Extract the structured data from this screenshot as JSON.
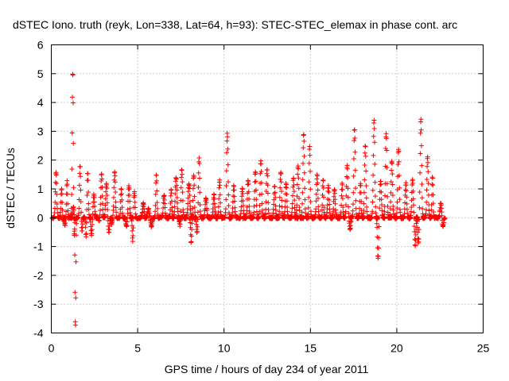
{
  "chart_data": {
    "type": "scatter",
    "title": "dSTEC Iono. truth (reyk, Lon=338, Lat=64, h=93): STEC-STEC_elemax in phase cont. arc",
    "xlabel": "GPS time / hours of day 234 of year 2011",
    "ylabel": "dSTEC  / TECUs",
    "xlim": [
      0,
      25
    ],
    "ylim": [
      -4,
      6
    ],
    "xticks": [
      0,
      5,
      10,
      15,
      20,
      25
    ],
    "yticks": [
      -4,
      -3,
      -2,
      -1,
      0,
      1,
      2,
      3,
      4,
      5,
      6
    ],
    "grid": true,
    "marker": "+",
    "color": "#ff0000",
    "series": [
      {
        "name": "dSTEC",
        "arcs": [
          {
            "start": 0.05,
            "end": 0.5,
            "peak": 1.6,
            "trough": 0.0
          },
          {
            "start": 0.4,
            "end": 0.8,
            "peak": 1.0,
            "trough": -0.1
          },
          {
            "start": 0.7,
            "end": 1.05,
            "peak": 1.3,
            "trough": -0.3
          },
          {
            "start": 1.05,
            "end": 1.45,
            "peak": 5.1,
            "trough": -0.9
          },
          {
            "start": 1.15,
            "end": 1.5,
            "peak": 0.4,
            "trough": -3.85
          },
          {
            "start": 1.5,
            "end": 1.9,
            "peak": 1.8,
            "trough": -0.5
          },
          {
            "start": 1.9,
            "end": 2.3,
            "peak": 1.6,
            "trough": -0.7
          },
          {
            "start": 2.2,
            "end": 2.7,
            "peak": 0.8,
            "trough": -0.6
          },
          {
            "start": 2.6,
            "end": 3.1,
            "peak": 1.5,
            "trough": -0.1
          },
          {
            "start": 3.0,
            "end": 3.5,
            "peak": 1.2,
            "trough": -0.5
          },
          {
            "start": 3.4,
            "end": 3.9,
            "peak": 1.6,
            "trough": -0.2
          },
          {
            "start": 3.9,
            "end": 4.3,
            "peak": 1.0,
            "trough": 0.0
          },
          {
            "start": 4.2,
            "end": 4.7,
            "peak": 1.1,
            "trough": -0.3
          },
          {
            "start": 4.6,
            "end": 5.0,
            "peak": 0.9,
            "trough": -0.8
          },
          {
            "start": 5.0,
            "end": 5.5,
            "peak": 0.5,
            "trough": 0.0
          },
          {
            "start": 5.4,
            "end": 5.9,
            "peak": 0.3,
            "trough": -0.3
          },
          {
            "start": 5.9,
            "end": 6.3,
            "peak": 1.5,
            "trough": 0.0
          },
          {
            "start": 6.3,
            "end": 6.8,
            "peak": 0.8,
            "trough": 0.0
          },
          {
            "start": 6.7,
            "end": 7.1,
            "peak": 1.0,
            "trough": 0.0
          },
          {
            "start": 7.0,
            "end": 7.6,
            "peak": 1.4,
            "trough": 0.0
          },
          {
            "start": 7.3,
            "end": 7.8,
            "peak": 1.7,
            "trough": -0.4
          },
          {
            "start": 7.7,
            "end": 8.3,
            "peak": 1.2,
            "trough": 0.0
          },
          {
            "start": 8.0,
            "end": 8.4,
            "peak": 1.5,
            "trough": -0.85
          },
          {
            "start": 8.3,
            "end": 8.7,
            "peak": 2.1,
            "trough": -0.5
          },
          {
            "start": 8.7,
            "end": 9.2,
            "peak": 0.7,
            "trough": 0.0
          },
          {
            "start": 9.1,
            "end": 9.6,
            "peak": 0.8,
            "trough": 0.0
          },
          {
            "start": 9.5,
            "end": 9.9,
            "peak": 1.3,
            "trough": 0.0
          },
          {
            "start": 9.9,
            "end": 10.4,
            "peak": 2.9,
            "trough": 0.0
          },
          {
            "start": 10.3,
            "end": 10.8,
            "peak": 1.1,
            "trough": 0.0
          },
          {
            "start": 10.8,
            "end": 11.3,
            "peak": 1.0,
            "trough": 0.0
          },
          {
            "start": 11.1,
            "end": 11.6,
            "peak": 1.3,
            "trough": 0.0
          },
          {
            "start": 11.5,
            "end": 12.0,
            "peak": 1.6,
            "trough": 0.0
          },
          {
            "start": 11.9,
            "end": 12.4,
            "peak": 2.0,
            "trough": 0.0
          },
          {
            "start": 12.3,
            "end": 12.8,
            "peak": 1.7,
            "trough": 0.0
          },
          {
            "start": 12.7,
            "end": 13.2,
            "peak": 1.1,
            "trough": 0.0
          },
          {
            "start": 13.0,
            "end": 13.5,
            "peak": 1.6,
            "trough": 0.0
          },
          {
            "start": 13.4,
            "end": 13.9,
            "peak": 1.2,
            "trough": 0.0
          },
          {
            "start": 13.8,
            "end": 14.3,
            "peak": 1.4,
            "trough": 0.0
          },
          {
            "start": 14.1,
            "end": 14.6,
            "peak": 1.8,
            "trough": 0.0
          },
          {
            "start": 14.4,
            "end": 14.9,
            "peak": 2.9,
            "trough": 0.0
          },
          {
            "start": 14.8,
            "end": 15.2,
            "peak": 2.5,
            "trough": 0.0
          },
          {
            "start": 15.1,
            "end": 15.6,
            "peak": 1.5,
            "trough": 0.0
          },
          {
            "start": 15.5,
            "end": 15.9,
            "peak": 1.3,
            "trough": 0.0
          },
          {
            "start": 15.8,
            "end": 16.3,
            "peak": 1.1,
            "trough": 0.0
          },
          {
            "start": 16.2,
            "end": 16.7,
            "peak": 1.0,
            "trough": 0.0
          },
          {
            "start": 16.6,
            "end": 17.0,
            "peak": 1.2,
            "trough": 0.0
          },
          {
            "start": 16.9,
            "end": 17.4,
            "peak": 1.8,
            "trough": -0.4
          },
          {
            "start": 17.3,
            "end": 17.8,
            "peak": 3.1,
            "trough": 0.0
          },
          {
            "start": 17.7,
            "end": 18.1,
            "peak": 1.2,
            "trough": 0.0
          },
          {
            "start": 18.0,
            "end": 18.5,
            "peak": 2.5,
            "trough": 0.0
          },
          {
            "start": 18.4,
            "end": 18.9,
            "peak": 3.4,
            "trough": 0.0
          },
          {
            "start": 18.8,
            "end": 19.3,
            "peak": 1.3,
            "trough": -1.45
          },
          {
            "start": 19.2,
            "end": 19.7,
            "peak": 2.95,
            "trough": 0.0
          },
          {
            "start": 19.5,
            "end": 20.0,
            "peak": 2.0,
            "trough": 0.0
          },
          {
            "start": 19.9,
            "end": 20.4,
            "peak": 2.4,
            "trough": 0.0
          },
          {
            "start": 20.3,
            "end": 20.8,
            "peak": 1.2,
            "trough": 0.0
          },
          {
            "start": 20.7,
            "end": 21.2,
            "peak": 1.3,
            "trough": -0.95
          },
          {
            "start": 21.1,
            "end": 21.6,
            "peak": 3.4,
            "trough": -0.9
          },
          {
            "start": 21.5,
            "end": 22.0,
            "peak": 2.1,
            "trough": 0.0
          },
          {
            "start": 21.9,
            "end": 22.3,
            "peak": 1.4,
            "trough": 0.0
          },
          {
            "start": 22.3,
            "end": 22.8,
            "peak": 0.5,
            "trough": -0.3
          }
        ]
      }
    ]
  }
}
